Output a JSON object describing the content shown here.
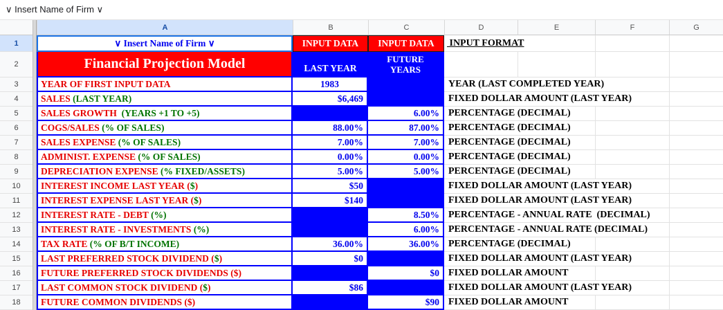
{
  "formula_bar": {
    "value": "∨ Insert Name of Firm ∨"
  },
  "column_headers": [
    "A",
    "B",
    "C",
    "D",
    "E",
    "F",
    "G"
  ],
  "row_numbers": [
    1,
    2,
    3,
    4,
    5,
    6,
    7,
    8,
    9,
    10,
    11,
    12,
    13,
    14,
    15,
    16,
    17,
    18
  ],
  "header_row": {
    "firm_name_cell": "∨  Insert Name of Firm ∨",
    "input_data_last": "INPUT DATA",
    "input_data_future": "INPUT DATA",
    "input_format": " INPUT FORMAT"
  },
  "title_row": {
    "title": "Financial Projection Model",
    "last_year": "LAST YEAR",
    "future_line1": "FUTURE",
    "future_line2": "YEARS"
  },
  "rows": [
    {
      "num": 3,
      "label": [
        {
          "t": "YEAR OF FIRST INPUT DATA",
          "c": "r"
        }
      ],
      "b": {
        "text": "1983",
        "filled": false,
        "align": "center"
      },
      "c": {
        "text": "",
        "filled": true
      },
      "format": "YEAR (LAST COMPLETED YEAR)",
      "grid_ef": false
    },
    {
      "num": 4,
      "label": [
        {
          "t": "SALES ",
          "c": "r"
        },
        {
          "t": "(LAST YEAR)",
          "c": "g"
        }
      ],
      "b": {
        "text": "$6,469",
        "filled": false
      },
      "c": {
        "text": "",
        "filled": true
      },
      "format": "FIXED DOLLAR AMOUNT (LAST YEAR)",
      "grid_ef": false
    },
    {
      "num": 5,
      "label": [
        {
          "t": "SALES GROWTH  ",
          "c": "r"
        },
        {
          "t": "(YEARS +1 TO +5)",
          "c": "g"
        }
      ],
      "b": {
        "text": "",
        "filled": true
      },
      "c": {
        "text": "6.00%",
        "filled": false
      },
      "format": "PERCENTAGE (DECIMAL)",
      "grid_ef": true
    },
    {
      "num": 6,
      "label": [
        {
          "t": "COGS/SALES ",
          "c": "r"
        },
        {
          "t": "(% OF SALES)",
          "c": "g"
        }
      ],
      "b": {
        "text": "88.00%",
        "filled": false
      },
      "c": {
        "text": "87.00%",
        "filled": false
      },
      "format": "PERCENTAGE (DECIMAL)",
      "grid_ef": true
    },
    {
      "num": 7,
      "label": [
        {
          "t": "SALES EXPENSE ",
          "c": "r"
        },
        {
          "t": "(% OF SALES)",
          "c": "g"
        }
      ],
      "b": {
        "text": "7.00%",
        "filled": false
      },
      "c": {
        "text": "7.00%",
        "filled": false
      },
      "format": "PERCENTAGE (DECIMAL)",
      "grid_ef": true
    },
    {
      "num": 8,
      "label": [
        {
          "t": "ADMINIST. EXPENSE ",
          "c": "r"
        },
        {
          "t": "(% OF SALES)",
          "c": "g"
        }
      ],
      "b": {
        "text": "0.00%",
        "filled": false
      },
      "c": {
        "text": "0.00%",
        "filled": false
      },
      "format": "PERCENTAGE (DECIMAL)",
      "grid_ef": true
    },
    {
      "num": 9,
      "label": [
        {
          "t": "DEPRECIATION EXPENSE ",
          "c": "r"
        },
        {
          "t": "(% FIXED/ASSETS)",
          "c": "g"
        }
      ],
      "b": {
        "text": "5.00%",
        "filled": false
      },
      "c": {
        "text": "5.00%",
        "filled": false
      },
      "format": "PERCENTAGE (DECIMAL)",
      "grid_ef": true
    },
    {
      "num": 10,
      "label": [
        {
          "t": "INTEREST INCOME LAST YEAR (",
          "c": "r"
        },
        {
          "t": "$",
          "c": "g"
        },
        {
          "t": ")",
          "c": "r"
        }
      ],
      "b": {
        "text": "$50",
        "filled": false
      },
      "c": {
        "text": "",
        "filled": true
      },
      "format": "FIXED DOLLAR AMOUNT (LAST YEAR)",
      "grid_ef": false
    },
    {
      "num": 11,
      "label": [
        {
          "t": "INTEREST EXPENSE LAST YEAR (",
          "c": "r"
        },
        {
          "t": "$",
          "c": "g"
        },
        {
          "t": ")",
          "c": "r"
        }
      ],
      "b": {
        "text": "$140",
        "filled": false
      },
      "c": {
        "text": "",
        "filled": true
      },
      "format": "FIXED DOLLAR AMOUNT (LAST YEAR)",
      "grid_ef": false
    },
    {
      "num": 12,
      "label": [
        {
          "t": "INTEREST RATE - DEBT ",
          "c": "r"
        },
        {
          "t": "(%)",
          "c": "g"
        }
      ],
      "b": {
        "text": "",
        "filled": true
      },
      "c": {
        "text": "8.50%",
        "filled": false
      },
      "format": "PERCENTAGE - ANNUAL RATE  (DECIMAL)",
      "grid_ef": false
    },
    {
      "num": 13,
      "label": [
        {
          "t": "INTEREST RATE - INVESTMENTS ",
          "c": "r"
        },
        {
          "t": "(%)",
          "c": "g"
        }
      ],
      "b": {
        "text": "",
        "filled": true
      },
      "c": {
        "text": "6.00%",
        "filled": false
      },
      "format": "PERCENTAGE - ANNUAL RATE (DECIMAL)",
      "grid_ef": false
    },
    {
      "num": 14,
      "label": [
        {
          "t": "TAX RATE ",
          "c": "r"
        },
        {
          "t": "(% OF B/T INCOME)",
          "c": "g"
        }
      ],
      "b": {
        "text": "36.00%",
        "filled": false
      },
      "c": {
        "text": "36.00%",
        "filled": false
      },
      "format": "PERCENTAGE (DECIMAL)",
      "grid_ef": true
    },
    {
      "num": 15,
      "label": [
        {
          "t": "LAST PREFERRED STOCK DIVIDEND (",
          "c": "r"
        },
        {
          "t": "$",
          "c": "g"
        },
        {
          "t": ")",
          "c": "r"
        }
      ],
      "b": {
        "text": "$0",
        "filled": false
      },
      "c": {
        "text": "",
        "filled": true
      },
      "format": "FIXED DOLLAR AMOUNT (LAST YEAR)",
      "grid_ef": false
    },
    {
      "num": 16,
      "label": [
        {
          "t": "FUTURE PREFERRED STOCK DIVIDENDS ($)",
          "c": "r"
        }
      ],
      "b": {
        "text": "",
        "filled": true
      },
      "c": {
        "text": "$0",
        "filled": false
      },
      "format": "FIXED DOLLAR AMOUNT",
      "grid_ef": true
    },
    {
      "num": 17,
      "label": [
        {
          "t": "LAST COMMON STOCK DIVIDEND (",
          "c": "r"
        },
        {
          "t": "$",
          "c": "g"
        },
        {
          "t": ")",
          "c": "r"
        }
      ],
      "b": {
        "text": "$86",
        "filled": false
      },
      "c": {
        "text": "",
        "filled": true
      },
      "format": "FIXED DOLLAR AMOUNT (LAST YEAR)",
      "grid_ef": false
    },
    {
      "num": 18,
      "label": [
        {
          "t": "FUTURE COMMON DIVIDENDS ($)",
          "c": "r"
        }
      ],
      "b": {
        "text": "",
        "filled": true
      },
      "c": {
        "text": "$90",
        "filled": false
      },
      "format": "FIXED DOLLAR AMOUNT",
      "grid_ef": true
    }
  ],
  "colors": {
    "input_header_fill": "#FF0000",
    "input_cell_fill": "#0000FF",
    "label_red": "#E60000",
    "label_green": "#007300",
    "value_blue": "#0000EE",
    "selection_blue": "#1A73E8",
    "header_highlight": "#D2E3FC"
  }
}
